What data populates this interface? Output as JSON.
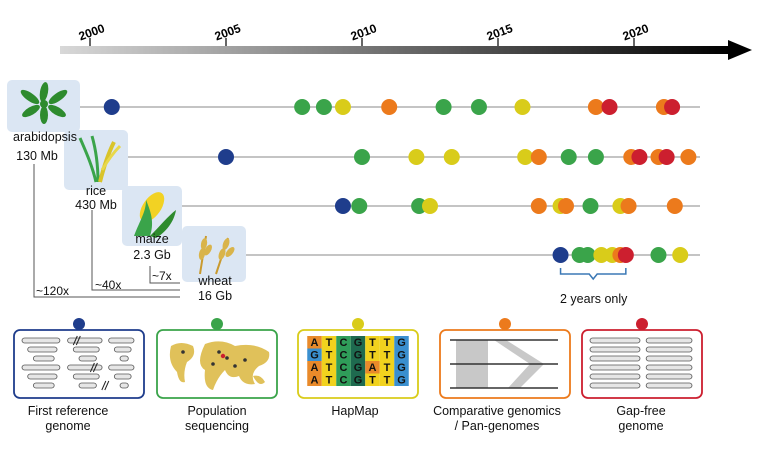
{
  "timeline": {
    "ticks": [
      {
        "label": "2000",
        "year": 2000
      },
      {
        "label": "2005",
        "year": 2005
      },
      {
        "label": "2010",
        "year": 2010
      },
      {
        "label": "2015",
        "year": 2015
      },
      {
        "label": "2020",
        "year": 2020
      }
    ]
  },
  "colors": {
    "first_reference_genome": "#1f3d8c",
    "population_sequencing": "#3aa44a",
    "hapmap": "#d9cc1a",
    "comparative_genomics": "#ec7a1c",
    "gap_free_genome": "#cc1f2f"
  },
  "crops": [
    {
      "name": "arabidopsis",
      "size": "130 Mb"
    },
    {
      "name": "rice",
      "size": "430 Mb"
    },
    {
      "name": "maize",
      "size": "2.3 Gb"
    },
    {
      "name": "wheat",
      "size": "16 Gb"
    }
  ],
  "ratios": {
    "rice": "~40x",
    "maize": "~7x",
    "wheat": "~120x"
  },
  "events": [
    [
      {
        "year": 2000.8,
        "type": "first_reference_genome"
      },
      {
        "year": 2007.8,
        "type": "population_sequencing"
      },
      {
        "year": 2008.6,
        "type": "population_sequencing"
      },
      {
        "year": 2009.3,
        "type": "hapmap"
      },
      {
        "year": 2011.0,
        "type": "comparative_genomics"
      },
      {
        "year": 2013.0,
        "type": "population_sequencing"
      },
      {
        "year": 2014.3,
        "type": "population_sequencing"
      },
      {
        "year": 2015.9,
        "type": "hapmap"
      },
      {
        "year": 2018.6,
        "type": "comparative_genomics"
      },
      {
        "year": 2019.1,
        "type": "gap_free_genome"
      },
      {
        "year": 2021.1,
        "type": "comparative_genomics"
      },
      {
        "year": 2021.4,
        "type": "gap_free_genome"
      }
    ],
    [
      {
        "year": 2005.0,
        "type": "first_reference_genome"
      },
      {
        "year": 2010.0,
        "type": "population_sequencing"
      },
      {
        "year": 2012.0,
        "type": "hapmap"
      },
      {
        "year": 2013.3,
        "type": "hapmap"
      },
      {
        "year": 2016.0,
        "type": "hapmap"
      },
      {
        "year": 2016.5,
        "type": "comparative_genomics"
      },
      {
        "year": 2017.6,
        "type": "population_sequencing"
      },
      {
        "year": 2018.6,
        "type": "population_sequencing"
      },
      {
        "year": 2019.9,
        "type": "comparative_genomics"
      },
      {
        "year": 2020.2,
        "type": "gap_free_genome"
      },
      {
        "year": 2020.9,
        "type": "comparative_genomics"
      },
      {
        "year": 2021.2,
        "type": "gap_free_genome"
      },
      {
        "year": 2022.0,
        "type": "comparative_genomics"
      }
    ],
    [
      {
        "year": 2009.3,
        "type": "first_reference_genome"
      },
      {
        "year": 2009.9,
        "type": "population_sequencing"
      },
      {
        "year": 2012.1,
        "type": "population_sequencing"
      },
      {
        "year": 2012.5,
        "type": "hapmap"
      },
      {
        "year": 2016.5,
        "type": "comparative_genomics"
      },
      {
        "year": 2017.3,
        "type": "hapmap"
      },
      {
        "year": 2017.5,
        "type": "comparative_genomics"
      },
      {
        "year": 2018.4,
        "type": "population_sequencing"
      },
      {
        "year": 2019.5,
        "type": "hapmap"
      },
      {
        "year": 2019.8,
        "type": "comparative_genomics"
      },
      {
        "year": 2021.5,
        "type": "comparative_genomics"
      }
    ],
    [
      {
        "year": 2017.3,
        "type": "first_reference_genome"
      },
      {
        "year": 2018.0,
        "type": "population_sequencing"
      },
      {
        "year": 2018.3,
        "type": "population_sequencing"
      },
      {
        "year": 2018.8,
        "type": "hapmap"
      },
      {
        "year": 2019.2,
        "type": "hapmap"
      },
      {
        "year": 2019.5,
        "type": "comparative_genomics"
      },
      {
        "year": 2019.7,
        "type": "gap_free_genome"
      },
      {
        "year": 2020.9,
        "type": "population_sequencing"
      },
      {
        "year": 2021.7,
        "type": "hapmap"
      }
    ]
  ],
  "bracket": {
    "label": "2 years only",
    "from_year": 2017.3,
    "to_year": 2019.7
  },
  "legend": [
    {
      "type": "first_reference_genome",
      "label": "First reference\ngenome",
      "figure": "genome-bars"
    },
    {
      "type": "population_sequencing",
      "label": "Population\nsequencing",
      "figure": "world-map"
    },
    {
      "type": "hapmap",
      "label": "HapMap",
      "figure": "snp-matrix"
    },
    {
      "type": "comparative_genomics",
      "label": "Comparative genomics\n/ Pan-genomes",
      "figure": "synteny"
    },
    {
      "type": "gap_free_genome",
      "label": "Gap-free\ngenome",
      "figure": "genome-bars-complete"
    }
  ],
  "hapmap_matrix": [
    [
      "A",
      "T",
      "C",
      "G",
      "T",
      "T",
      "G"
    ],
    [
      "G",
      "T",
      "C",
      "G",
      "T",
      "T",
      "G"
    ],
    [
      "A",
      "T",
      "C",
      "G",
      "A",
      "T",
      "G"
    ],
    [
      "A",
      "T",
      "C",
      "G",
      "T",
      "T",
      "G"
    ]
  ]
}
